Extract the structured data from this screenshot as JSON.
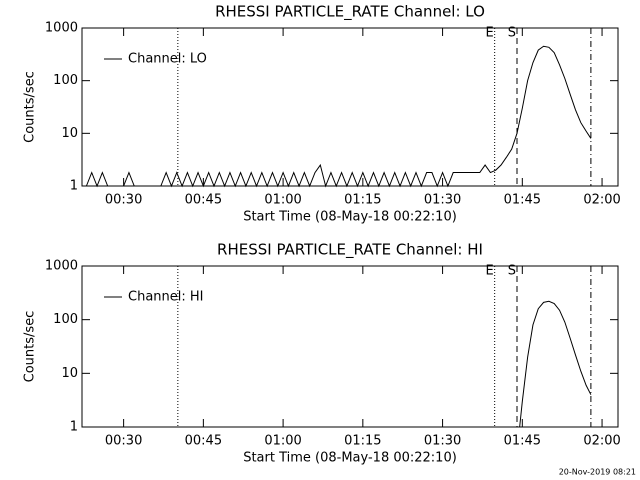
{
  "chart_data": [
    {
      "type": "line",
      "title": "RHESSI PARTICLE_RATE Channel: LO",
      "x_label": "Start Time (08-May-18 00:22:10)",
      "y_label": "Counts/sec",
      "log_y": true,
      "ylim": [
        1,
        1000
      ],
      "yticks": [
        1,
        10,
        100,
        1000
      ],
      "xlim": [
        22.17,
        123
      ],
      "xticks": [
        {
          "value": 30,
          "label": "00:30"
        },
        {
          "value": 45,
          "label": "00:45"
        },
        {
          "value": 60,
          "label": "01:00"
        },
        {
          "value": 75,
          "label": "01:15"
        },
        {
          "value": 90,
          "label": "01:30"
        },
        {
          "value": 105,
          "label": "01:45"
        },
        {
          "value": 120,
          "label": "02:00"
        }
      ],
      "legend": "top-left",
      "markers": [
        {
          "x": 40.2,
          "style": "dotted"
        },
        {
          "x": 99.8,
          "style": "dotted",
          "label": "E"
        },
        {
          "x": 104.0,
          "style": "dashed",
          "label": "S"
        },
        {
          "x": 117.9,
          "style": "dashdot"
        }
      ],
      "series": [
        {
          "name": "Channel: LO",
          "color": "#000000",
          "x": [
            23,
            24,
            25,
            26,
            27,
            28,
            29,
            30,
            31,
            32,
            33,
            34,
            35,
            36,
            37,
            38,
            39,
            40,
            41,
            42,
            43,
            44,
            45,
            46,
            47,
            48,
            49,
            50,
            51,
            52,
            53,
            54,
            55,
            56,
            57,
            58,
            59,
            60,
            61,
            62,
            63,
            64,
            65,
            66,
            67,
            68,
            69,
            70,
            71,
            72,
            73,
            74,
            75,
            76,
            77,
            78,
            79,
            80,
            81,
            82,
            83,
            84,
            85,
            86,
            87,
            88,
            89,
            90,
            91,
            92,
            93,
            95,
            97,
            98,
            99,
            100,
            101,
            102,
            103,
            104,
            105,
            106,
            107,
            108,
            109,
            110,
            111,
            112,
            113,
            114,
            115,
            116,
            117,
            117.9
          ],
          "values": [
            1,
            1.8,
            1,
            1.8,
            1,
            1,
            1,
            1,
            1.8,
            1,
            1,
            1,
            1,
            1,
            1,
            1.8,
            1,
            1.8,
            1,
            1.8,
            1,
            1.8,
            1,
            1.8,
            1,
            1.8,
            1,
            1.8,
            1,
            1.8,
            1,
            1.8,
            1,
            1.8,
            1,
            1.8,
            1,
            1.8,
            1,
            1.8,
            1,
            1.8,
            1,
            1.8,
            2.5,
            1,
            1.8,
            1,
            1.8,
            1,
            1.8,
            1,
            1.8,
            1,
            1.8,
            1,
            1.8,
            1,
            1.8,
            1,
            1.8,
            1,
            1.8,
            1,
            1.8,
            1.8,
            1,
            1.8,
            1,
            1.8,
            1.8,
            1.8,
            1.8,
            2.5,
            1.8,
            2,
            2.5,
            3.5,
            5,
            10,
            30,
            100,
            220,
            380,
            450,
            430,
            340,
            200,
            110,
            55,
            28,
            16,
            11,
            8
          ]
        }
      ]
    },
    {
      "type": "line",
      "title": "RHESSI PARTICLE_RATE Channel: HI",
      "x_label": "Start Time (08-May-18 00:22:10)",
      "y_label": "Counts/sec",
      "log_y": true,
      "ylim": [
        1,
        1000
      ],
      "yticks": [
        1,
        10,
        100,
        1000
      ],
      "xlim": [
        22.17,
        123
      ],
      "xticks": [
        {
          "value": 30,
          "label": "00:30"
        },
        {
          "value": 45,
          "label": "00:45"
        },
        {
          "value": 60,
          "label": "01:00"
        },
        {
          "value": 75,
          "label": "01:15"
        },
        {
          "value": 90,
          "label": "01:30"
        },
        {
          "value": 105,
          "label": "01:45"
        },
        {
          "value": 120,
          "label": "02:00"
        }
      ],
      "legend": "top-left",
      "markers": [
        {
          "x": 40.2,
          "style": "dotted"
        },
        {
          "x": 99.8,
          "style": "dotted",
          "label": "E"
        },
        {
          "x": 104.0,
          "style": "dashed",
          "label": "S"
        },
        {
          "x": 117.9,
          "style": "dashdot"
        }
      ],
      "series": [
        {
          "name": "Channel: HI",
          "color": "#000000",
          "x": [
            104.5,
            105,
            106,
            107,
            108,
            109,
            110,
            111,
            112,
            113,
            114,
            115,
            116,
            117,
            117.9
          ],
          "values": [
            1,
            3,
            20,
            80,
            160,
            210,
            220,
            200,
            150,
            90,
            45,
            22,
            11,
            6,
            4
          ]
        }
      ]
    }
  ],
  "footer": "20-Nov-2019 08:21"
}
